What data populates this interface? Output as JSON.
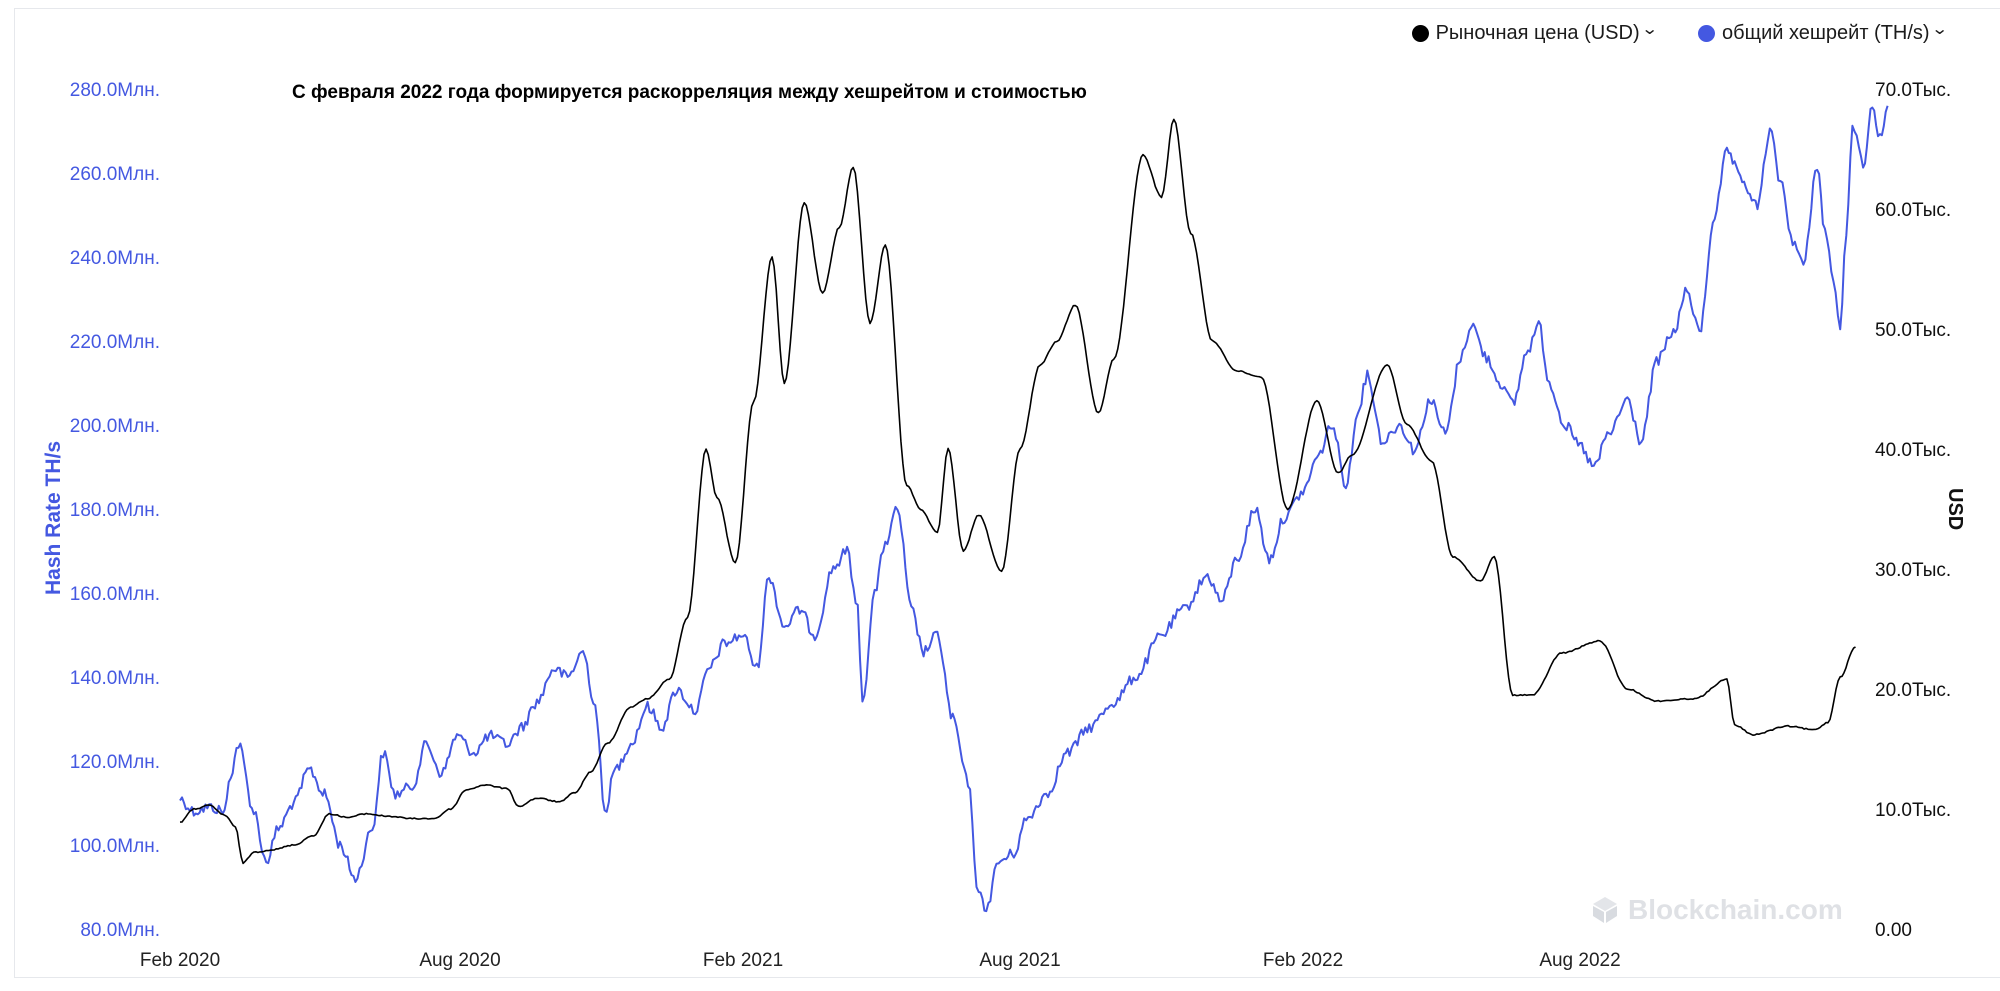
{
  "chart_data": {
    "type": "line",
    "annotation": "С февраля 2022 года формируется раскорреляция между хешрейтом и стоимостью",
    "x_ticks": [
      "Feb 2020",
      "Aug 2020",
      "Feb 2021",
      "Aug 2021",
      "Feb 2022",
      "Aug 2022"
    ],
    "y_left": {
      "label": "Hash Rate TH/s",
      "range": [
        80,
        280
      ],
      "ticks": [
        "280.0Млн.",
        "260.0Млн.",
        "240.0Млн.",
        "220.0Млн.",
        "200.0Млн.",
        "180.0Млн.",
        "160.0Млн.",
        "140.0Млн.",
        "120.0Млн.",
        "100.0Млн.",
        "80.0Млн."
      ]
    },
    "y_right": {
      "label": "USD",
      "range": [
        0,
        70
      ],
      "ticks": [
        "70.0Тыс.",
        "60.0Тыс.",
        "50.0Тыс.",
        "40.0Тыс.",
        "30.0Тыс.",
        "20.0Тыс.",
        "10.0Тыс.",
        "0.00"
      ]
    },
    "series": [
      {
        "name": "Рыночная цена (USD)",
        "axis": "right",
        "color": "#000000",
        "points": [
          [
            "2020-02-01",
            8.9
          ],
          [
            "2020-02-10",
            10.0
          ],
          [
            "2020-02-20",
            10.3
          ],
          [
            "2020-03-01",
            9.5
          ],
          [
            "2020-03-08",
            8.5
          ],
          [
            "2020-03-13",
            5.5
          ],
          [
            "2020-03-20",
            6.4
          ],
          [
            "2020-04-01",
            6.6
          ],
          [
            "2020-04-15",
            7.0
          ],
          [
            "2020-04-28",
            7.8
          ],
          [
            "2020-05-08",
            9.6
          ],
          [
            "2020-05-20",
            9.3
          ],
          [
            "2020-06-01",
            9.6
          ],
          [
            "2020-06-15",
            9.4
          ],
          [
            "2020-07-01",
            9.2
          ],
          [
            "2020-07-15",
            9.2
          ],
          [
            "2020-07-26",
            10.0
          ],
          [
            "2020-08-05",
            11.6
          ],
          [
            "2020-08-17",
            12.0
          ],
          [
            "2020-09-01",
            11.7
          ],
          [
            "2020-09-08",
            10.2
          ],
          [
            "2020-09-20",
            10.9
          ],
          [
            "2020-10-05",
            10.6
          ],
          [
            "2020-10-15",
            11.4
          ],
          [
            "2020-10-25",
            13.1
          ],
          [
            "2020-11-05",
            15.5
          ],
          [
            "2020-11-20",
            18.5
          ],
          [
            "2020-12-01",
            19.2
          ],
          [
            "2020-12-15",
            20.8
          ],
          [
            "2020-12-27",
            26.0
          ],
          [
            "2021-01-08",
            40.0
          ],
          [
            "2021-01-15",
            36.0
          ],
          [
            "2021-01-27",
            30.5
          ],
          [
            "2021-02-08",
            44.0
          ],
          [
            "2021-02-20",
            56.0
          ],
          [
            "2021-02-28",
            45.5
          ],
          [
            "2021-03-13",
            60.5
          ],
          [
            "2021-03-25",
            53.0
          ],
          [
            "2021-04-05",
            58.5
          ],
          [
            "2021-04-14",
            63.5
          ],
          [
            "2021-04-25",
            50.5
          ],
          [
            "2021-05-05",
            57.0
          ],
          [
            "2021-05-19",
            37.0
          ],
          [
            "2021-05-28",
            35.0
          ],
          [
            "2021-06-08",
            33.0
          ],
          [
            "2021-06-15",
            40.0
          ],
          [
            "2021-06-25",
            31.5
          ],
          [
            "2021-07-05",
            34.5
          ],
          [
            "2021-07-20",
            29.8
          ],
          [
            "2021-08-01",
            40.0
          ],
          [
            "2021-08-14",
            47.0
          ],
          [
            "2021-08-25",
            49.0
          ],
          [
            "2021-09-06",
            52.0
          ],
          [
            "2021-09-21",
            43.0
          ],
          [
            "2021-10-01",
            47.5
          ],
          [
            "2021-10-20",
            64.5
          ],
          [
            "2021-11-01",
            61.0
          ],
          [
            "2021-11-09",
            67.5
          ],
          [
            "2021-11-20",
            58.0
          ],
          [
            "2021-12-04",
            49.0
          ],
          [
            "2021-12-20",
            46.5
          ],
          [
            "2022-01-05",
            46.0
          ],
          [
            "2022-01-22",
            35.0
          ],
          [
            "2022-02-10",
            44.0
          ],
          [
            "2022-02-24",
            38.0
          ],
          [
            "2022-03-05",
            39.5
          ],
          [
            "2022-03-28",
            47.0
          ],
          [
            "2022-04-10",
            42.0
          ],
          [
            "2022-04-26",
            39.0
          ],
          [
            "2022-05-10",
            31.0
          ],
          [
            "2022-05-28",
            29.0
          ],
          [
            "2022-06-06",
            31.0
          ],
          [
            "2022-06-18",
            19.5
          ],
          [
            "2022-07-01",
            19.5
          ],
          [
            "2022-07-20",
            23.0
          ],
          [
            "2022-08-14",
            24.0
          ],
          [
            "2022-09-01",
            20.0
          ],
          [
            "2022-09-20",
            19.0
          ],
          [
            "2022-10-15",
            19.2
          ],
          [
            "2022-11-05",
            20.8
          ],
          [
            "2022-11-10",
            17.0
          ],
          [
            "2022-11-22",
            16.2
          ],
          [
            "2022-12-15",
            16.9
          ],
          [
            "2023-01-01",
            16.6
          ],
          [
            "2023-01-10",
            17.2
          ],
          [
            "2023-01-18",
            21.0
          ],
          [
            "2023-01-28",
            23.5
          ]
        ]
      },
      {
        "name": "общий хешрейт (TH/s)",
        "axis": "left",
        "color": "#4458e1",
        "points": [
          [
            "2020-02-01",
            111
          ],
          [
            "2020-02-10",
            108
          ],
          [
            "2020-02-20",
            109
          ],
          [
            "2020-03-01",
            108
          ],
          [
            "2020-03-05",
            117
          ],
          [
            "2020-03-10",
            124
          ],
          [
            "2020-03-20",
            108
          ],
          [
            "2020-03-28",
            96
          ],
          [
            "2020-04-05",
            104
          ],
          [
            "2020-04-15",
            110
          ],
          [
            "2020-04-25",
            118
          ],
          [
            "2020-05-05",
            112
          ],
          [
            "2020-05-15",
            100
          ],
          [
            "2020-05-25",
            92
          ],
          [
            "2020-06-05",
            104
          ],
          [
            "2020-06-12",
            122
          ],
          [
            "2020-06-20",
            112
          ],
          [
            "2020-07-01",
            114
          ],
          [
            "2020-07-10",
            124
          ],
          [
            "2020-07-20",
            117
          ],
          [
            "2020-07-30",
            126
          ],
          [
            "2020-08-10",
            122
          ],
          [
            "2020-08-20",
            126
          ],
          [
            "2020-09-01",
            124
          ],
          [
            "2020-09-10",
            128
          ],
          [
            "2020-09-20",
            134
          ],
          [
            "2020-10-01",
            142
          ],
          [
            "2020-10-10",
            140
          ],
          [
            "2020-10-20",
            146
          ],
          [
            "2020-10-28",
            133
          ],
          [
            "2020-11-03",
            108
          ],
          [
            "2020-11-10",
            118
          ],
          [
            "2020-11-20",
            124
          ],
          [
            "2020-12-01",
            133
          ],
          [
            "2020-12-10",
            128
          ],
          [
            "2020-12-20",
            137
          ],
          [
            "2021-01-01",
            132
          ],
          [
            "2021-01-10",
            142
          ],
          [
            "2021-01-20",
            148
          ],
          [
            "2021-02-01",
            150
          ],
          [
            "2021-02-10",
            142
          ],
          [
            "2021-02-18",
            164
          ],
          [
            "2021-02-28",
            152
          ],
          [
            "2021-03-10",
            156
          ],
          [
            "2021-03-20",
            150
          ],
          [
            "2021-04-01",
            166
          ],
          [
            "2021-04-10",
            170
          ],
          [
            "2021-04-17",
            156
          ],
          [
            "2021-04-20",
            134
          ],
          [
            "2021-04-28",
            160
          ],
          [
            "2021-05-05",
            172
          ],
          [
            "2021-05-13",
            180
          ],
          [
            "2021-05-22",
            156
          ],
          [
            "2021-05-30",
            146
          ],
          [
            "2021-06-08",
            150
          ],
          [
            "2021-06-18",
            130
          ],
          [
            "2021-06-28",
            115
          ],
          [
            "2021-07-05",
            88
          ],
          [
            "2021-07-10",
            85
          ],
          [
            "2021-07-18",
            96
          ],
          [
            "2021-07-28",
            98
          ],
          [
            "2021-08-05",
            106
          ],
          [
            "2021-08-18",
            112
          ],
          [
            "2021-09-01",
            122
          ],
          [
            "2021-09-15",
            128
          ],
          [
            "2021-10-01",
            134
          ],
          [
            "2021-10-15",
            140
          ],
          [
            "2021-11-01",
            150
          ],
          [
            "2021-11-15",
            156
          ],
          [
            "2021-12-01",
            164
          ],
          [
            "2021-12-10",
            158
          ],
          [
            "2021-12-20",
            168
          ],
          [
            "2022-01-01",
            180
          ],
          [
            "2022-01-10",
            168
          ],
          [
            "2022-01-20",
            178
          ],
          [
            "2022-02-01",
            184
          ],
          [
            "2022-02-10",
            192
          ],
          [
            "2022-02-20",
            200
          ],
          [
            "2022-03-01",
            186
          ],
          [
            "2022-03-10",
            205
          ],
          [
            "2022-03-15",
            212
          ],
          [
            "2022-03-25",
            196
          ],
          [
            "2022-04-05",
            200
          ],
          [
            "2022-04-15",
            194
          ],
          [
            "2022-04-25",
            206
          ],
          [
            "2022-05-05",
            198
          ],
          [
            "2022-05-15",
            216
          ],
          [
            "2022-05-22",
            224
          ],
          [
            "2022-06-01",
            216
          ],
          [
            "2022-06-10",
            210
          ],
          [
            "2022-06-18",
            205
          ],
          [
            "2022-06-28",
            218
          ],
          [
            "2022-07-05",
            224
          ],
          [
            "2022-07-12",
            210
          ],
          [
            "2022-07-22",
            200
          ],
          [
            "2022-08-01",
            195
          ],
          [
            "2022-08-10",
            190
          ],
          [
            "2022-08-20",
            198
          ],
          [
            "2022-09-01",
            206
          ],
          [
            "2022-09-10",
            196
          ],
          [
            "2022-09-20",
            215
          ],
          [
            "2022-10-01",
            222
          ],
          [
            "2022-10-10",
            232
          ],
          [
            "2022-10-18",
            222
          ],
          [
            "2022-10-28",
            250
          ],
          [
            "2022-11-05",
            265
          ],
          [
            "2022-11-15",
            258
          ],
          [
            "2022-11-25",
            252
          ],
          [
            "2022-12-03",
            270
          ],
          [
            "2022-12-10",
            258
          ],
          [
            "2022-12-18",
            244
          ],
          [
            "2022-12-25",
            238
          ],
          [
            "2023-01-03",
            262
          ],
          [
            "2023-01-08",
            246
          ],
          [
            "2023-01-15",
            232
          ],
          [
            "2023-01-18",
            222
          ],
          [
            "2023-01-22",
            245
          ],
          [
            "2023-01-26",
            272
          ],
          [
            "2023-02-02",
            262
          ],
          [
            "2023-02-08",
            276
          ],
          [
            "2023-02-13",
            268
          ],
          [
            "2023-02-18",
            276
          ]
        ]
      }
    ],
    "legend_position": "top-right",
    "grid": false
  },
  "legend": {
    "items": [
      {
        "label": "Рыночная цена (USD)",
        "color": "#000000"
      },
      {
        "label": "общий хешрейт (TH/s)",
        "color": "#4458e1"
      }
    ]
  },
  "watermark": {
    "text": "Blockchain.com",
    "icon": "blockchain-logo-icon"
  }
}
